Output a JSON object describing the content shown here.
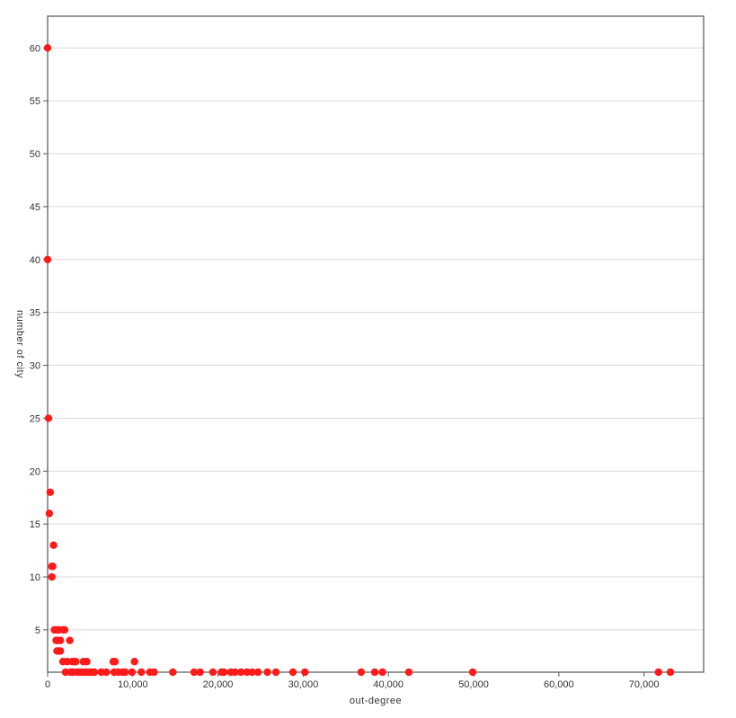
{
  "chart_data": {
    "type": "scatter",
    "title": "",
    "xlabel": "out-degree",
    "ylabel": "number of city",
    "xlim": [
      0,
      77000
    ],
    "ylim": [
      1,
      63
    ],
    "x_ticks": [
      0,
      10000,
      20000,
      30000,
      40000,
      50000,
      60000,
      70000
    ],
    "x_tick_labels": [
      "0",
      "10,000",
      "20,000",
      "30,000",
      "40,000",
      "50,000",
      "60,000",
      "70,000"
    ],
    "y_ticks": [
      5,
      10,
      15,
      20,
      25,
      30,
      35,
      40,
      45,
      50,
      55,
      60
    ],
    "y_tick_labels": [
      "5",
      "10",
      "15",
      "20",
      "25",
      "30",
      "35",
      "40",
      "45",
      "50",
      "55",
      "60"
    ],
    "grid": "horizontal",
    "marker_color": "#ff1a1a",
    "gridline_color": "#d9d9d9",
    "axis_color": "#555555",
    "points": [
      {
        "x": 0,
        "y": 60
      },
      {
        "x": 0,
        "y": 40
      },
      {
        "x": 100,
        "y": 25
      },
      {
        "x": 300,
        "y": 18
      },
      {
        "x": 200,
        "y": 16
      },
      {
        "x": 700,
        "y": 13
      },
      {
        "x": 500,
        "y": 11
      },
      {
        "x": 600,
        "y": 11
      },
      {
        "x": 500,
        "y": 10
      },
      {
        "x": 800,
        "y": 5
      },
      {
        "x": 1000,
        "y": 5
      },
      {
        "x": 1300,
        "y": 5
      },
      {
        "x": 1800,
        "y": 5
      },
      {
        "x": 2000,
        "y": 5
      },
      {
        "x": 1000,
        "y": 4
      },
      {
        "x": 1200,
        "y": 4
      },
      {
        "x": 1500,
        "y": 4
      },
      {
        "x": 2600,
        "y": 4
      },
      {
        "x": 1100,
        "y": 3
      },
      {
        "x": 1300,
        "y": 3
      },
      {
        "x": 1500,
        "y": 3
      },
      {
        "x": 1800,
        "y": 2
      },
      {
        "x": 2300,
        "y": 2
      },
      {
        "x": 2900,
        "y": 2
      },
      {
        "x": 3100,
        "y": 2
      },
      {
        "x": 3300,
        "y": 2
      },
      {
        "x": 4200,
        "y": 2
      },
      {
        "x": 4600,
        "y": 2
      },
      {
        "x": 7700,
        "y": 2
      },
      {
        "x": 7900,
        "y": 2
      },
      {
        "x": 10200,
        "y": 2
      },
      {
        "x": 2100,
        "y": 1
      },
      {
        "x": 2700,
        "y": 1
      },
      {
        "x": 3000,
        "y": 1
      },
      {
        "x": 3500,
        "y": 1
      },
      {
        "x": 3800,
        "y": 1
      },
      {
        "x": 4100,
        "y": 1
      },
      {
        "x": 4500,
        "y": 1
      },
      {
        "x": 4900,
        "y": 1
      },
      {
        "x": 5200,
        "y": 1
      },
      {
        "x": 5500,
        "y": 1
      },
      {
        "x": 6300,
        "y": 1
      },
      {
        "x": 6900,
        "y": 1
      },
      {
        "x": 7800,
        "y": 1
      },
      {
        "x": 8300,
        "y": 1
      },
      {
        "x": 8800,
        "y": 1
      },
      {
        "x": 9100,
        "y": 1
      },
      {
        "x": 9900,
        "y": 1
      },
      {
        "x": 11000,
        "y": 1
      },
      {
        "x": 12000,
        "y": 1
      },
      {
        "x": 12500,
        "y": 1
      },
      {
        "x": 14700,
        "y": 1
      },
      {
        "x": 17200,
        "y": 1
      },
      {
        "x": 17900,
        "y": 1
      },
      {
        "x": 19400,
        "y": 1
      },
      {
        "x": 20400,
        "y": 1
      },
      {
        "x": 20700,
        "y": 1
      },
      {
        "x": 21500,
        "y": 1
      },
      {
        "x": 22000,
        "y": 1
      },
      {
        "x": 22700,
        "y": 1
      },
      {
        "x": 23400,
        "y": 1
      },
      {
        "x": 24000,
        "y": 1
      },
      {
        "x": 24700,
        "y": 1
      },
      {
        "x": 25800,
        "y": 1
      },
      {
        "x": 26800,
        "y": 1
      },
      {
        "x": 28800,
        "y": 1
      },
      {
        "x": 30200,
        "y": 1
      },
      {
        "x": 36800,
        "y": 1
      },
      {
        "x": 38400,
        "y": 1
      },
      {
        "x": 39300,
        "y": 1
      },
      {
        "x": 42400,
        "y": 1
      },
      {
        "x": 49900,
        "y": 1
      },
      {
        "x": 71700,
        "y": 1
      },
      {
        "x": 73100,
        "y": 1
      }
    ]
  }
}
